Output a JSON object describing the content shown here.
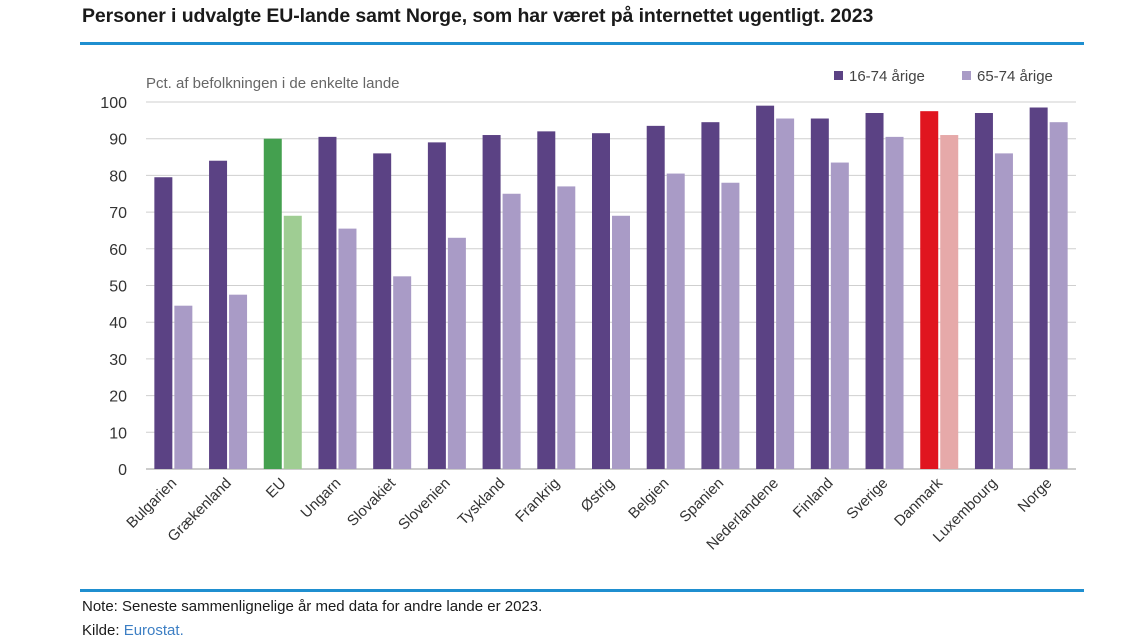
{
  "title": "Personer i udvalgte EU-lande samt Norge, som har været på internettet ugentligt. 2023",
  "note": "Note: Seneste sammenlignelige år med data for andre lande er 2023.",
  "source": {
    "label": "Kilde:",
    "link_text": "Eurostat."
  },
  "chart_data": {
    "type": "bar",
    "ylabel": "Pct. af befolkningen i de enkelte lande",
    "xlabel": "",
    "ylim": [
      0,
      100
    ],
    "yticks": [
      0,
      10,
      20,
      30,
      40,
      50,
      60,
      70,
      80,
      90,
      100
    ],
    "grid": true,
    "legend_position": "top-right",
    "categories": [
      "Bulgarien",
      "Grækenland",
      "EU",
      "Ungarn",
      "Slovakiet",
      "Slovenien",
      "Tyskland",
      "Frankrig",
      "Østrig",
      "Belgien",
      "Spanien",
      "Nederlandene",
      "Finland",
      "Sverige",
      "Danmark",
      "Luxembourg",
      "Norge"
    ],
    "series": [
      {
        "name": "16-74 årige",
        "color": "#5b4284",
        "values": [
          79.5,
          84,
          90,
          90.5,
          86,
          89,
          91,
          92,
          91.5,
          93.5,
          94.5,
          99,
          95.5,
          97,
          97.5,
          97,
          98.5
        ]
      },
      {
        "name": "65-74 årige",
        "color": "#a99bc6",
        "values": [
          44.5,
          47.5,
          69,
          65.5,
          52.5,
          63,
          75,
          77,
          69,
          80.5,
          78,
          95.5,
          83.5,
          90.5,
          91,
          86,
          94.5
        ]
      }
    ],
    "highlight": {
      "EU": [
        "#44a04f",
        "#9fcd93"
      ],
      "Danmark": [
        "#e0151f",
        "#e6a9a9"
      ]
    }
  }
}
